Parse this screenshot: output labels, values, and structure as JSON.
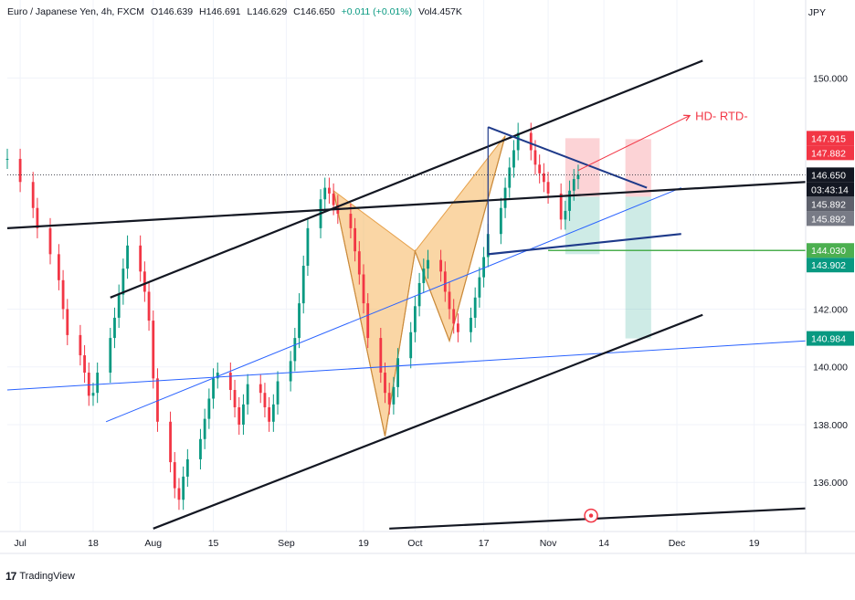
{
  "header": {
    "symbol": "Euro / Japanese Yen, 4h, FXCM",
    "open": "O146.639",
    "high": "H146.691",
    "low": "L146.629",
    "close": "C146.650",
    "change": "+0.011 (+0.01%)",
    "volume": "Vol4.457K"
  },
  "currency_label": "JPY",
  "brand": {
    "logo": "17",
    "text": "TradingView"
  },
  "colors": {
    "up": "#089981",
    "down": "#f23645",
    "pattern": "#f5b45b",
    "trend_black": "#131722",
    "trend_blue": "#2962ff",
    "target_red": "#f23645",
    "green_line": "#4caf50"
  },
  "chart_data": {
    "type": "line",
    "x_type": "date",
    "xlim": [
      "2024-06-28",
      "2024-12-31"
    ],
    "ylim": [
      134.3,
      152.7
    ],
    "grid": true,
    "y_ticks": [
      "150.000",
      "142.000",
      "140.000",
      "138.000",
      "136.000"
    ],
    "x_ticks": [
      "Jul",
      "18",
      "Aug",
      "15",
      "Sep",
      "19",
      "Oct",
      "17",
      "Nov",
      "14",
      "Dec",
      "19"
    ],
    "x_tick_dates": [
      "2024-07-01",
      "2024-07-18",
      "2024-08-01",
      "2024-08-15",
      "2024-09-01",
      "2024-09-19",
      "2024-10-01",
      "2024-10-17",
      "2024-11-01",
      "2024-11-14",
      "2024-12-01",
      "2024-12-19"
    ],
    "series": [
      {
        "x": [
          "2024-06-28",
          "2024-07-01",
          "2024-07-04",
          "2024-07-05",
          "2024-07-08",
          "2024-07-10",
          "2024-07-11",
          "2024-07-12",
          "2024-07-15",
          "2024-07-16",
          "2024-07-17",
          "2024-07-18",
          "2024-07-19",
          "2024-07-22",
          "2024-07-23",
          "2024-07-24",
          "2024-07-25",
          "2024-07-26",
          "2024-07-29",
          "2024-07-30",
          "2024-07-31",
          "2024-08-01",
          "2024-08-02",
          "2024-08-05",
          "2024-08-06",
          "2024-08-07",
          "2024-08-08",
          "2024-08-09",
          "2024-08-12",
          "2024-08-13",
          "2024-08-14",
          "2024-08-15",
          "2024-08-16",
          "2024-08-19",
          "2024-08-20",
          "2024-08-21",
          "2024-08-22",
          "2024-08-23",
          "2024-08-26",
          "2024-08-27",
          "2024-08-28",
          "2024-08-29",
          "2024-08-30",
          "2024-09-02",
          "2024-09-03",
          "2024-09-04",
          "2024-09-05",
          "2024-09-06",
          "2024-09-09",
          "2024-09-10",
          "2024-09-11",
          "2024-09-12",
          "2024-09-13",
          "2024-09-16",
          "2024-09-17",
          "2024-09-18",
          "2024-09-19",
          "2024-09-20",
          "2024-09-23",
          "2024-09-24",
          "2024-09-25",
          "2024-09-26",
          "2024-09-27",
          "2024-09-30",
          "2024-10-01",
          "2024-10-02",
          "2024-10-03",
          "2024-10-04",
          "2024-10-07",
          "2024-10-08",
          "2024-10-09",
          "2024-10-10",
          "2024-10-11",
          "2024-10-14",
          "2024-10-15",
          "2024-10-16",
          "2024-10-17",
          "2024-10-18",
          "2024-10-21",
          "2024-10-22",
          "2024-10-23",
          "2024-10-24",
          "2024-10-25",
          "2024-10-28",
          "2024-10-29",
          "2024-10-30",
          "2024-10-31",
          "2024-11-01",
          "2024-11-04",
          "2024-11-05",
          "2024-11-06",
          "2024-11-07",
          "2024-11-08"
        ],
        "y": [
          147.2,
          146.4,
          145.5,
          144.8,
          143.9,
          143.0,
          142.0,
          141.1,
          140.4,
          139.8,
          139.0,
          139.1,
          139.8,
          141.0,
          141.7,
          142.5,
          143.4,
          144.2,
          143.3,
          142.6,
          141.6,
          139.6,
          138.1,
          136.7,
          135.8,
          135.4,
          136.2,
          136.8,
          137.5,
          138.2,
          138.9,
          139.6,
          139.8,
          139.2,
          138.6,
          138.0,
          138.7,
          139.4,
          139.1,
          138.6,
          138.1,
          138.7,
          139.5,
          140.2,
          141.0,
          142.2,
          143.5,
          144.8,
          145.8,
          146.2,
          146.0,
          145.6,
          145.3,
          144.8,
          144.0,
          143.2,
          142.2,
          141.0,
          139.8,
          139.1,
          138.7,
          139.3,
          140.3,
          141.2,
          142.1,
          142.9,
          143.4,
          143.7,
          143.3,
          142.6,
          142.0,
          141.5,
          141.2,
          141.7,
          142.4,
          143.1,
          143.8,
          144.6,
          145.5,
          146.2,
          146.9,
          147.5,
          148.1,
          147.5,
          147.0,
          146.7,
          146.4,
          146.0,
          145.1,
          145.4,
          146.1,
          146.5,
          146.65
        ],
        "kind": "candles-approx"
      }
    ],
    "price_labels": [
      {
        "text": "147.915",
        "style": "red"
      },
      {
        "text": "147.882",
        "style": "red"
      },
      {
        "text": "146.650",
        "style": "black"
      },
      {
        "text": "03:43:14",
        "style": "black-sub"
      },
      {
        "text": "145.892",
        "style": "gray"
      },
      {
        "text": "145.892",
        "style": "gray-light"
      },
      {
        "text": "144.030",
        "style": "green"
      },
      {
        "text": "143.902",
        "style": "teal"
      },
      {
        "text": "140.984",
        "style": "teal"
      }
    ],
    "annotations": [
      {
        "text": "HD- RTD-",
        "color": "#f23645"
      }
    ],
    "drawings": {
      "harmonic_points": [
        {
          "x": "2024-09-12",
          "y": 146.1
        },
        {
          "x": "2024-09-24",
          "y": 137.6
        },
        {
          "x": "2024-10-01",
          "y": 144.0
        },
        {
          "x": "2024-10-09",
          "y": 140.9
        },
        {
          "x": "2024-10-22",
          "y": 148.0
        }
      ],
      "channel_upper": [
        {
          "x": "2024-07-22",
          "y": 142.4
        },
        {
          "x": "2024-12-07",
          "y": 150.6
        }
      ],
      "channel_lower": [
        {
          "x": "2024-08-01",
          "y": 134.4
        },
        {
          "x": "2024-12-07",
          "y": 141.8
        }
      ],
      "trend_black_top": [
        {
          "x": "2024-06-28",
          "y": 144.8
        },
        {
          "x": "2024-12-31",
          "y": 146.4
        }
      ],
      "trend_blue_lower": [
        {
          "x": "2024-06-28",
          "y": 139.2
        },
        {
          "x": "2024-12-31",
          "y": 140.9
        }
      ],
      "trend_blue_diag": [
        {
          "x": "2024-07-21",
          "y": 138.1
        },
        {
          "x": "2024-12-02",
          "y": 146.2
        }
      ],
      "triangle_top": [
        {
          "x": "2024-10-18",
          "y": 148.3
        },
        {
          "x": "2024-11-24",
          "y": 146.2
        }
      ],
      "triangle_bottom": [
        {
          "x": "2024-10-18",
          "y": 143.9
        },
        {
          "x": "2024-12-02",
          "y": 144.6
        }
      ],
      "bottom_line": [
        {
          "x": "2024-09-25",
          "y": 134.4
        },
        {
          "x": "2024-12-31",
          "y": 135.1
        }
      ],
      "green_hline": {
        "y": 144.03,
        "from": "2024-11-01"
      },
      "boxes": [
        {
          "x0": "2024-11-05",
          "x1": "2024-11-13",
          "y0": 145.892,
          "y1": 147.915,
          "fill": "red"
        },
        {
          "x0": "2024-11-05",
          "x1": "2024-11-13",
          "y0": 143.902,
          "y1": 145.892,
          "fill": "teal"
        },
        {
          "x0": "2024-11-19",
          "x1": "2024-11-25",
          "y0": 145.892,
          "y1": 147.882,
          "fill": "red"
        },
        {
          "x0": "2024-11-19",
          "x1": "2024-11-25",
          "y0": 140.984,
          "y1": 145.892,
          "fill": "teal"
        }
      ],
      "target_arrow": [
        {
          "x": "2024-11-08",
          "y": 146.8
        },
        {
          "x": "2024-12-04",
          "y": 148.7
        }
      ]
    }
  }
}
